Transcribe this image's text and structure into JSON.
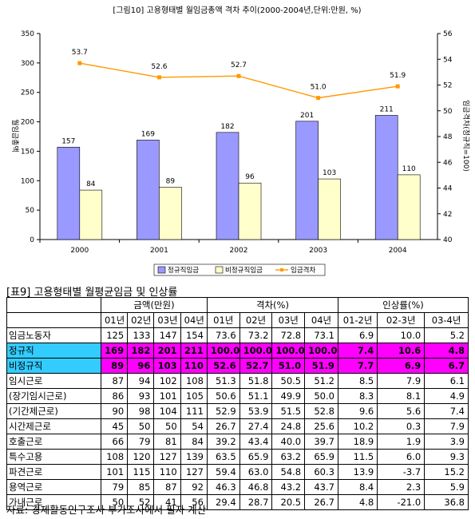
{
  "chart_data": {
    "type": "bar",
    "title": "[그림10] 고용형태별 월임금총액 격차 추이(2000-2004년,단위:만원, %)",
    "categories": [
      "2000",
      "2001",
      "2002",
      "2003",
      "2004"
    ],
    "series": [
      {
        "name": "정규직임금",
        "type": "bar",
        "axis": "left",
        "color": "#9999ff",
        "values": [
          157,
          169,
          182,
          201,
          211
        ]
      },
      {
        "name": "비정규직임금",
        "type": "bar",
        "axis": "left",
        "color": "#ffffcc",
        "values": [
          84,
          89,
          96,
          103,
          110
        ]
      },
      {
        "name": "임금격차",
        "type": "line",
        "axis": "right",
        "color": "#ff9900",
        "values": [
          53.7,
          52.6,
          52.7,
          51.0,
          51.9
        ]
      }
    ],
    "ylabel": "월임금총액",
    "y2label": "임금격차(정규직=100)",
    "ylim": [
      0,
      350
    ],
    "y2lim": [
      40,
      56
    ],
    "yticks": [
      "0",
      "50",
      "100",
      "150",
      "200",
      "250",
      "300",
      "350"
    ],
    "y2ticks": [
      "40",
      "42",
      "44",
      "46",
      "48",
      "50",
      "52",
      "54",
      "56"
    ],
    "value_labels_bar1": [
      "157",
      "169",
      "182",
      "201",
      "211"
    ],
    "value_labels_bar2": [
      "84",
      "89",
      "96",
      "103",
      "110"
    ],
    "value_labels_line": [
      "53.7",
      "52.6",
      "52.7",
      "51.0",
      "51.9"
    ],
    "legend": "bottom",
    "grid": false
  },
  "table": {
    "title": "[표9] 고용형태별 월평균임금 및 인상률",
    "groups": [
      "금액(만원)",
      "격차(%)",
      "인상률(%)"
    ],
    "subheaders": [
      "01년",
      "02년",
      "03년",
      "04년",
      "01년",
      "02년",
      "03년",
      "04년",
      "01-2년",
      "02-3년",
      "03-4년"
    ],
    "rows": [
      {
        "label": "임금노동자",
        "cells": [
          "125",
          "133",
          "147",
          "154",
          "73.6",
          "73.2",
          "72.8",
          "73.1",
          "6.9",
          "10.0",
          "5.2"
        ]
      },
      {
        "label": "정규직",
        "cells": [
          "169",
          "182",
          "201",
          "211",
          "100.0",
          "100.0",
          "100.0",
          "100.0",
          "7.4",
          "10.6",
          "4.8"
        ]
      },
      {
        "label": "비정규직",
        "cells": [
          "89",
          "96",
          "103",
          "110",
          "52.6",
          "52.7",
          "51.0",
          "51.9",
          "7.7",
          "6.9",
          "6.7"
        ]
      },
      {
        "label": "임시근로",
        "cells": [
          "87",
          "94",
          "102",
          "108",
          "51.3",
          "51.8",
          "50.5",
          "51.2",
          "8.5",
          "7.9",
          "6.1"
        ]
      },
      {
        "label": " (장기임시근로)",
        "cells": [
          "86",
          "93",
          "101",
          "105",
          "50.6",
          "51.1",
          "49.9",
          "50.0",
          "8.3",
          "8.1",
          "4.9"
        ]
      },
      {
        "label": " (기간제근로)",
        "cells": [
          "90",
          "98",
          "104",
          "111",
          "52.9",
          "53.9",
          "51.5",
          "52.8",
          "9.6",
          "5.6",
          "7.4"
        ]
      },
      {
        "label": "시간제근로",
        "cells": [
          "45",
          "50",
          "50",
          "54",
          "26.7",
          "27.4",
          "24.8",
          "25.6",
          "10.2",
          "0.3",
          "7.9"
        ]
      },
      {
        "label": "호출근로",
        "cells": [
          "66",
          "79",
          "81",
          "84",
          "39.2",
          "43.4",
          "40.0",
          "39.7",
          "18.9",
          "1.9",
          "3.9"
        ]
      },
      {
        "label": "특수고용",
        "cells": [
          "108",
          "120",
          "127",
          "139",
          "63.5",
          "65.9",
          "63.2",
          "65.9",
          "11.5",
          "6.0",
          "9.3"
        ]
      },
      {
        "label": "파견근로",
        "cells": [
          "101",
          "115",
          "110",
          "127",
          "59.4",
          "63.0",
          "54.8",
          "60.3",
          "13.9",
          "-3.7",
          "15.2"
        ]
      },
      {
        "label": "용역근로",
        "cells": [
          "79",
          "85",
          "87",
          "92",
          "46.3",
          "46.8",
          "43.2",
          "43.7",
          "8.4",
          "2.3",
          "5.9"
        ]
      },
      {
        "label": "가내근로",
        "cells": [
          "50",
          "52",
          "41",
          "56",
          "29.4",
          "28.7",
          "20.5",
          "26.7",
          "4.8",
          "-21.0",
          "36.8"
        ]
      }
    ]
  },
  "source": "자료: 경제활동인구조사 부가조사에서 필자 계산"
}
